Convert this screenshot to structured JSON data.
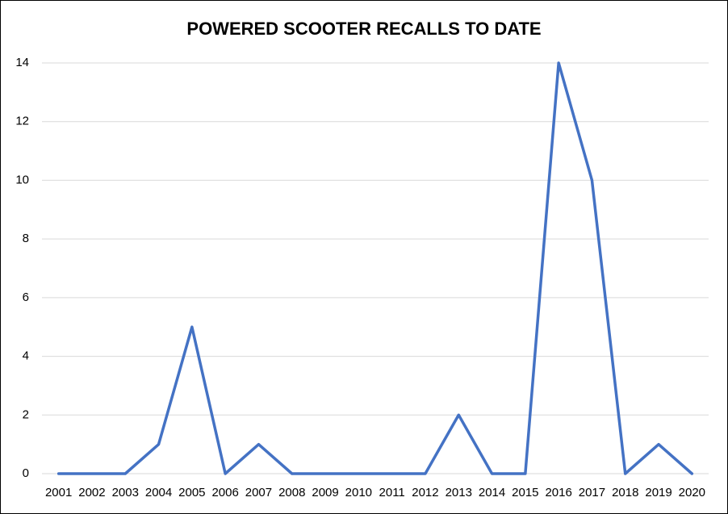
{
  "chart_data": {
    "type": "line",
    "title": "POWERED SCOOTER RECALLS TO DATE",
    "categories": [
      "2001",
      "2002",
      "2003",
      "2004",
      "2005",
      "2006",
      "2007",
      "2008",
      "2009",
      "2010",
      "2011",
      "2012",
      "2013",
      "2014",
      "2015",
      "2016",
      "2017",
      "2018",
      "2019",
      "2020"
    ],
    "values": [
      0,
      0,
      0,
      1,
      5,
      0,
      1,
      0,
      0,
      0,
      0,
      0,
      2,
      0,
      0,
      14,
      10,
      0,
      1,
      0
    ],
    "color": "#4472c4",
    "ylim": [
      0,
      14
    ],
    "yticks": [
      0,
      2,
      4,
      6,
      8,
      10,
      12,
      14
    ],
    "grid": true
  }
}
